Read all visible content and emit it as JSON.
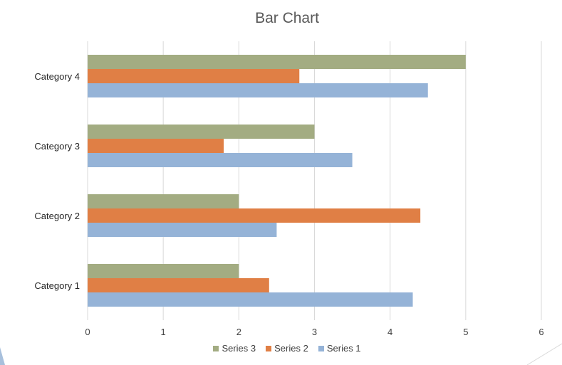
{
  "chart_data": {
    "type": "bar",
    "orientation": "horizontal",
    "title": "Bar Chart",
    "xlabel": "",
    "ylabel": "",
    "categories": [
      "Category 1",
      "Category 2",
      "Category 3",
      "Category 4"
    ],
    "series": [
      {
        "name": "Series 1",
        "color": "#95b3d7",
        "values": [
          4.3,
          2.5,
          3.5,
          4.5
        ]
      },
      {
        "name": "Series 2",
        "color": "#e07f45",
        "values": [
          2.4,
          4.4,
          1.8,
          2.8
        ]
      },
      {
        "name": "Series 3",
        "color": "#a3ac82",
        "values": [
          2,
          2,
          3,
          5
        ]
      }
    ],
    "xlim": [
      0,
      6
    ],
    "x_ticks": [
      "0",
      "1",
      "2",
      "3",
      "4",
      "5",
      "6"
    ],
    "grid": true,
    "legend_position": "bottom",
    "legend_order": [
      "Series 3",
      "Series 2",
      "Series 1"
    ],
    "gridline_color": "#d9d9d9"
  }
}
